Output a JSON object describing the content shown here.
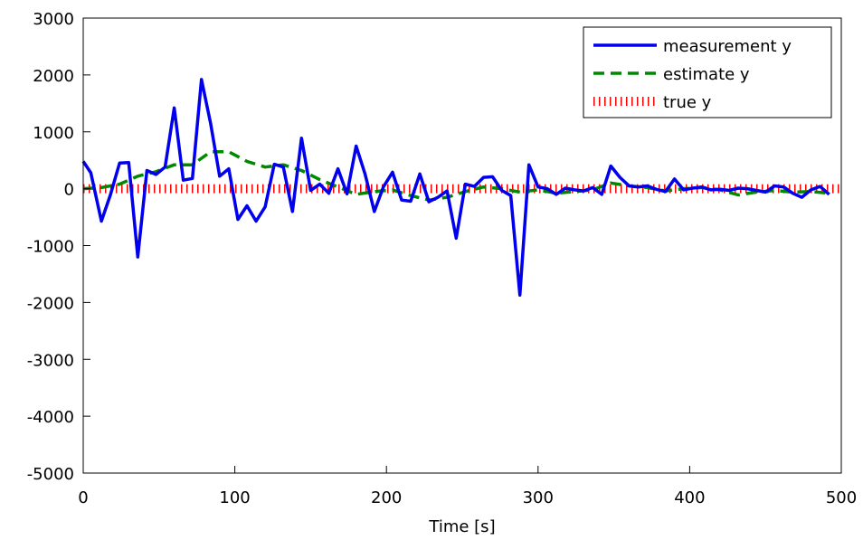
{
  "chart_data": {
    "type": "line",
    "title": "",
    "xlabel": "Time [s]",
    "ylabel": "",
    "xlim": [
      0,
      500
    ],
    "ylim": [
      -5000,
      3000
    ],
    "xticks": [
      0,
      100,
      200,
      300,
      400,
      500
    ],
    "yticks": [
      3000,
      2000,
      1000,
      0,
      -1000,
      -2000,
      -3000,
      -4000,
      -5000
    ],
    "grid": false,
    "legend_position": "top-right",
    "series": [
      {
        "name": "measurement y",
        "color": "#0000ee",
        "style": "solid",
        "x": [
          0,
          5,
          12,
          18,
          24,
          30,
          36,
          42,
          48,
          54,
          60,
          66,
          72,
          78,
          84,
          90,
          96,
          102,
          108,
          114,
          120,
          126,
          132,
          138,
          144,
          150,
          156,
          162,
          168,
          174,
          180,
          186,
          192,
          198,
          204,
          210,
          216,
          222,
          228,
          234,
          240,
          246,
          252,
          258,
          264,
          270,
          276,
          282,
          288,
          294,
          300,
          306,
          312,
          318,
          324,
          330,
          336,
          342,
          348,
          354,
          360,
          366,
          372,
          378,
          384,
          390,
          396,
          402,
          408,
          414,
          420,
          426,
          432,
          438,
          444,
          450,
          456,
          462,
          468,
          474,
          480,
          486,
          492
        ],
        "y": [
          480,
          280,
          -570,
          -100,
          450,
          460,
          -1200,
          320,
          250,
          380,
          1420,
          150,
          180,
          1920,
          1150,
          220,
          350,
          -540,
          -300,
          -570,
          -320,
          430,
          380,
          -400,
          890,
          -30,
          80,
          -80,
          350,
          -90,
          750,
          250,
          -400,
          30,
          290,
          -200,
          -220,
          260,
          -230,
          -150,
          -40,
          -870,
          80,
          40,
          200,
          210,
          -30,
          -120,
          -1870,
          420,
          30,
          0,
          -100,
          10,
          -20,
          -40,
          20,
          -100,
          400,
          200,
          50,
          30,
          50,
          -10,
          -50,
          170,
          -20,
          10,
          30,
          -20,
          -10,
          -30,
          10,
          0,
          -30,
          -60,
          50,
          30,
          -80,
          -150,
          -20,
          40,
          -100
        ]
      },
      {
        "name": "estimate y",
        "color": "#008800",
        "style": "dashed",
        "x": [
          0,
          12,
          24,
          36,
          48,
          60,
          72,
          84,
          96,
          108,
          120,
          132,
          144,
          156,
          168,
          180,
          192,
          204,
          216,
          228,
          240,
          252,
          264,
          276,
          288,
          300,
          312,
          324,
          336,
          348,
          360,
          372,
          384,
          396,
          408,
          420,
          432,
          444,
          456,
          468,
          480,
          492
        ],
        "y": [
          0,
          20,
          80,
          220,
          300,
          420,
          420,
          650,
          650,
          480,
          380,
          420,
          320,
          160,
          30,
          -100,
          -50,
          -20,
          -120,
          -200,
          -150,
          -50,
          30,
          0,
          -60,
          -20,
          -80,
          -50,
          -20,
          100,
          50,
          20,
          -40,
          0,
          20,
          -20,
          -110,
          -60,
          -30,
          -60,
          -50,
          -80
        ]
      },
      {
        "name": "true y",
        "color": "#ff0000",
        "style": "dotted",
        "x": [
          0,
          500
        ],
        "y": [
          0,
          0
        ]
      }
    ]
  }
}
